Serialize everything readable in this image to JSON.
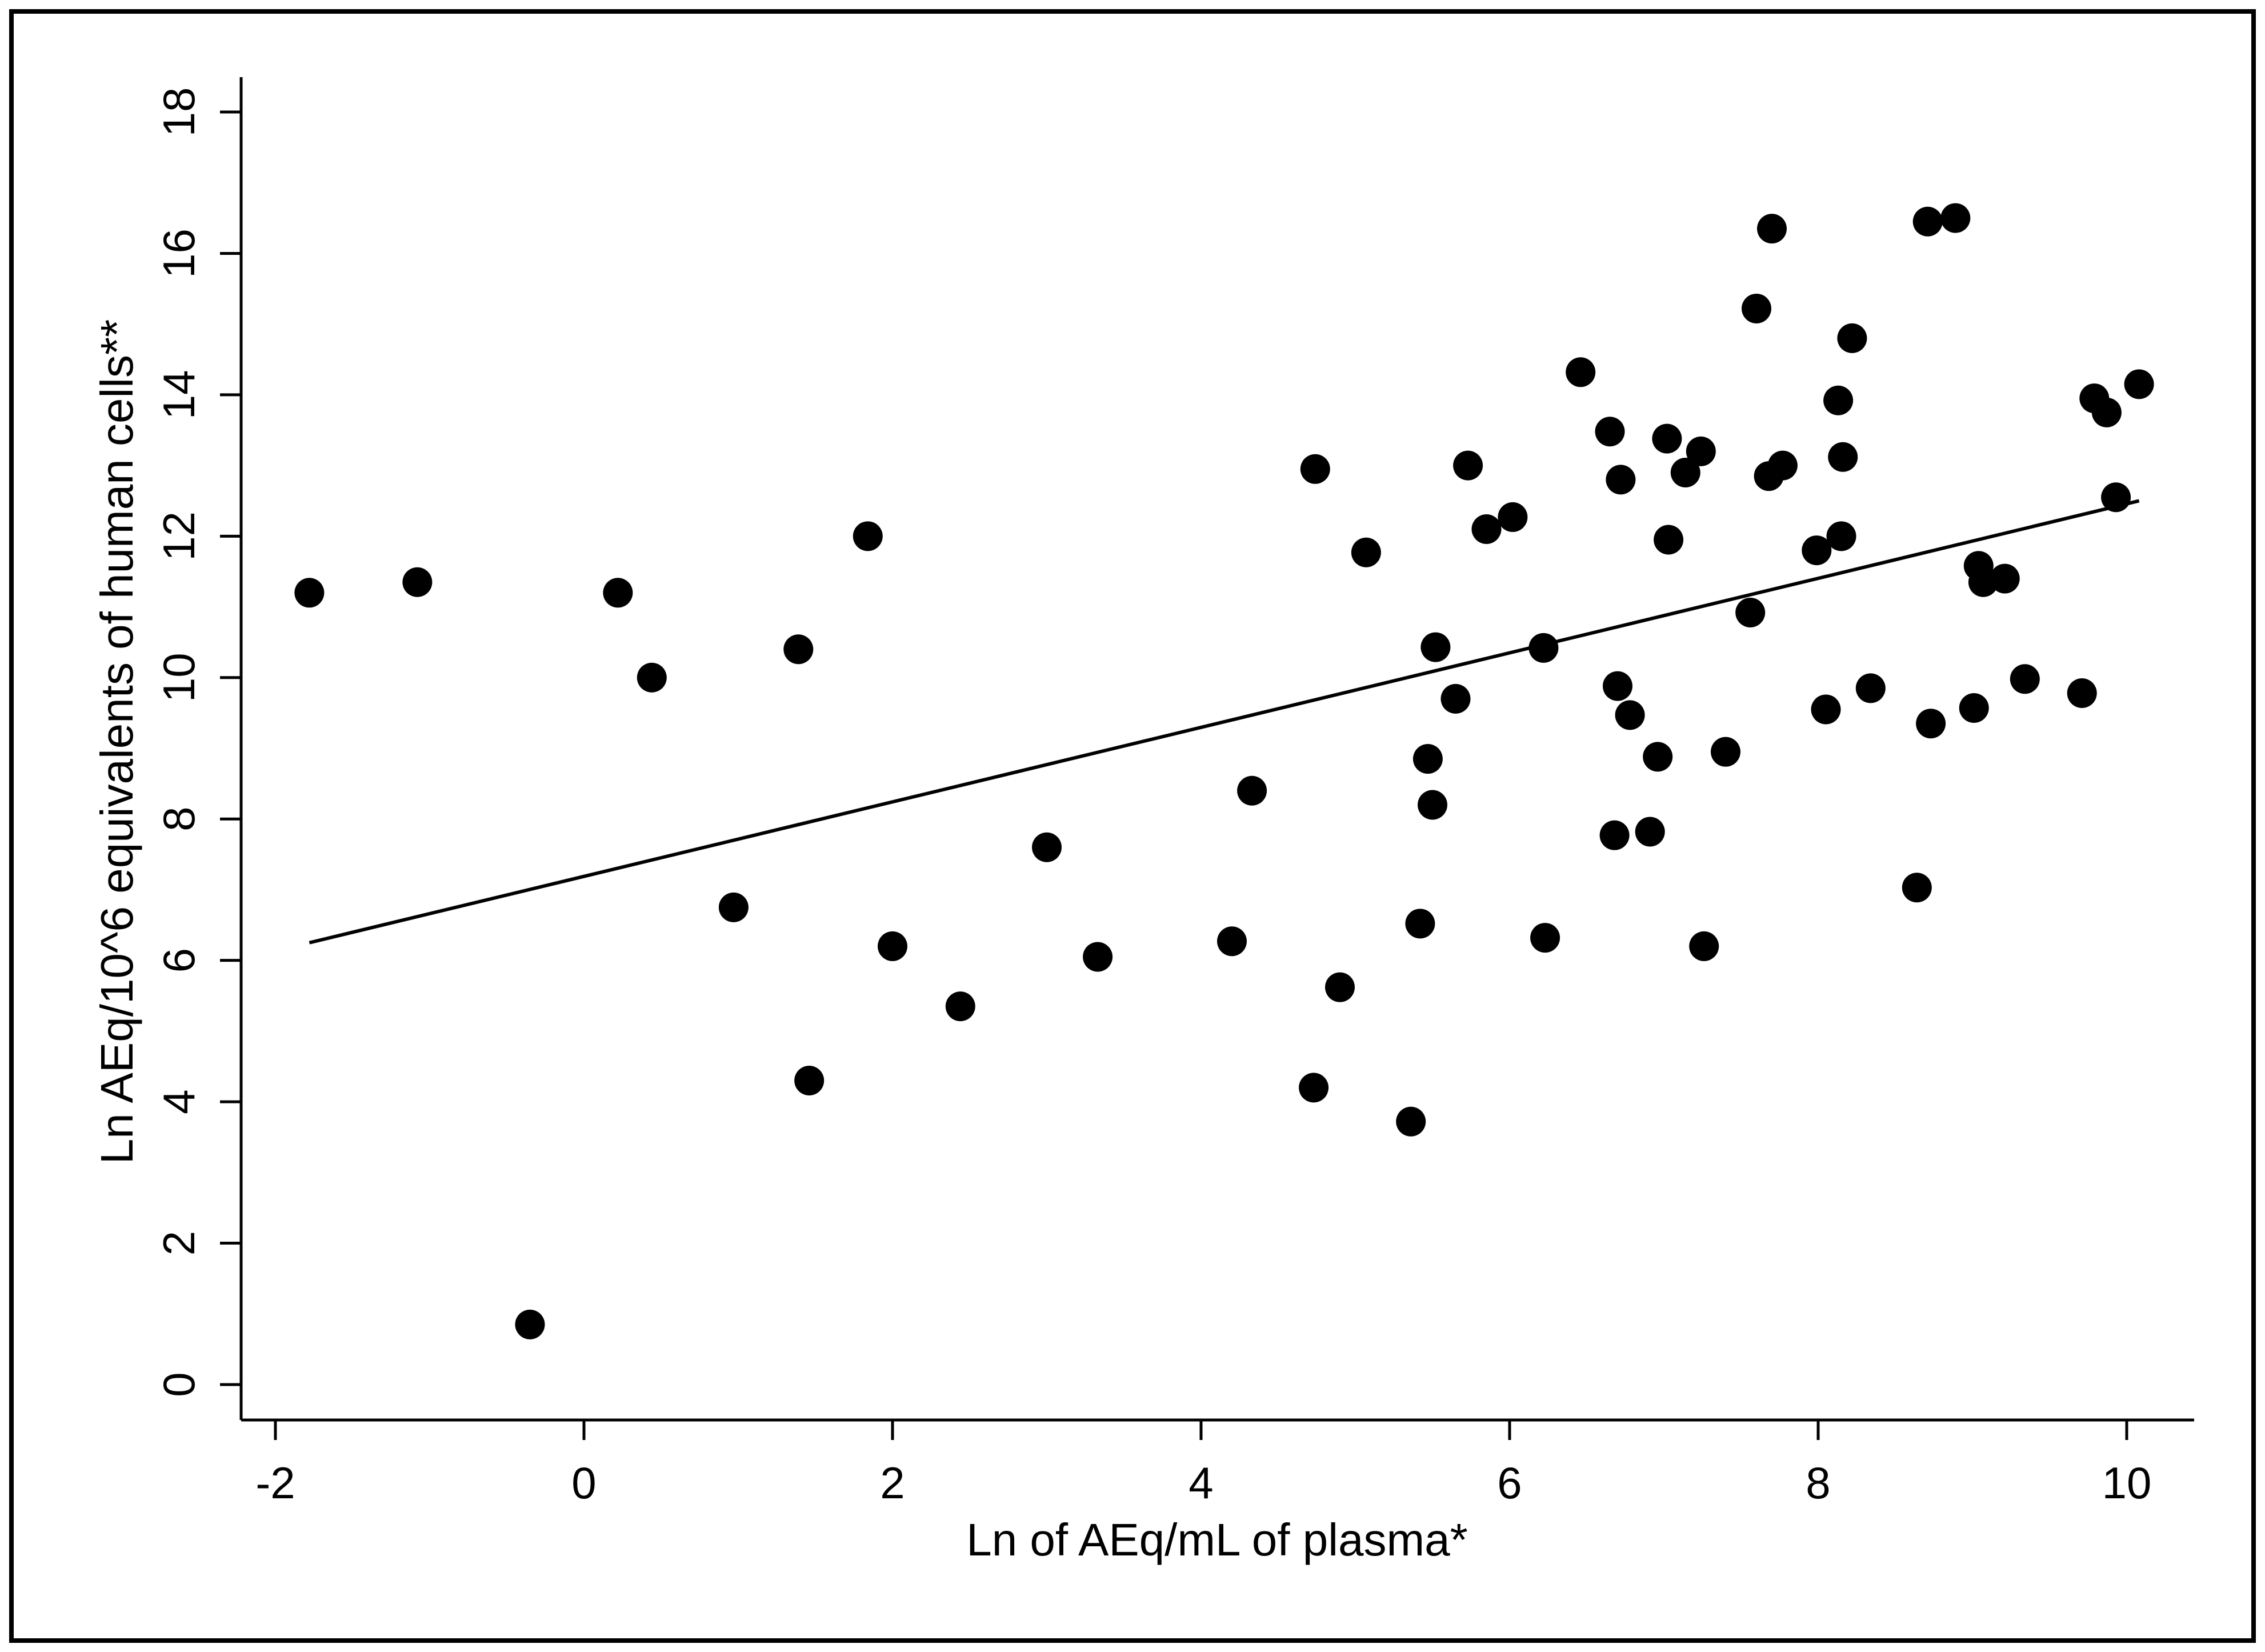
{
  "chart_data": {
    "type": "scatter",
    "xlabel": "Ln of AEq/mL of plasma*",
    "ylabel": "Ln AEq/10^6 equivalents of human cells**",
    "xlim": [
      -2.2,
      10.5
    ],
    "ylim": [
      -0.5,
      18.5
    ],
    "x_ticks": [
      -2,
      0,
      2,
      4,
      6,
      8,
      10
    ],
    "y_ticks": [
      0,
      2,
      4,
      6,
      8,
      10,
      12,
      14,
      16,
      18
    ],
    "x_tick_labels": [
      "-2",
      "0",
      "2",
      "4",
      "6",
      "8",
      "10"
    ],
    "y_tick_labels": [
      "0",
      "2",
      "4",
      "6",
      "8",
      "10",
      "12",
      "14",
      "16",
      "18"
    ],
    "grid": false,
    "legend": "none",
    "points": [
      [
        -1.78,
        11.2
      ],
      [
        -1.08,
        11.35
      ],
      [
        -0.35,
        0.85
      ],
      [
        0.22,
        11.2
      ],
      [
        0.44,
        10.0
      ],
      [
        0.97,
        6.75
      ],
      [
        1.39,
        10.4
      ],
      [
        1.46,
        4.3
      ],
      [
        1.84,
        12.0
      ],
      [
        2.0,
        6.2
      ],
      [
        2.44,
        5.35
      ],
      [
        3.0,
        7.6
      ],
      [
        3.33,
        6.05
      ],
      [
        4.2,
        6.27
      ],
      [
        4.33,
        8.4
      ],
      [
        4.73,
        4.2
      ],
      [
        4.74,
        12.95
      ],
      [
        4.9,
        5.62
      ],
      [
        5.07,
        11.77
      ],
      [
        5.36,
        3.72
      ],
      [
        5.42,
        6.52
      ],
      [
        5.47,
        8.85
      ],
      [
        5.5,
        8.2
      ],
      [
        5.52,
        10.43
      ],
      [
        5.65,
        9.7
      ],
      [
        5.73,
        13.0
      ],
      [
        5.85,
        12.1
      ],
      [
        6.02,
        12.27
      ],
      [
        6.22,
        10.42
      ],
      [
        6.23,
        6.32
      ],
      [
        6.46,
        14.32
      ],
      [
        6.65,
        13.48
      ],
      [
        6.68,
        7.77
      ],
      [
        6.7,
        9.88
      ],
      [
        6.72,
        12.8
      ],
      [
        6.78,
        9.47
      ],
      [
        6.91,
        7.82
      ],
      [
        6.96,
        8.88
      ],
      [
        7.02,
        13.38
      ],
      [
        7.03,
        11.95
      ],
      [
        7.14,
        12.9
      ],
      [
        7.24,
        13.2
      ],
      [
        7.26,
        6.2
      ],
      [
        7.4,
        8.95
      ],
      [
        7.56,
        10.92
      ],
      [
        7.6,
        15.22
      ],
      [
        7.68,
        12.85
      ],
      [
        7.7,
        16.35
      ],
      [
        7.77,
        13.0
      ],
      [
        7.99,
        11.8
      ],
      [
        8.05,
        9.55
      ],
      [
        8.13,
        13.92
      ],
      [
        8.15,
        12.0
      ],
      [
        8.16,
        13.12
      ],
      [
        8.22,
        14.8
      ],
      [
        8.34,
        9.85
      ],
      [
        8.64,
        7.03
      ],
      [
        8.71,
        16.45
      ],
      [
        8.73,
        9.35
      ],
      [
        8.89,
        16.5
      ],
      [
        9.01,
        9.57
      ],
      [
        9.04,
        11.58
      ],
      [
        9.07,
        11.35
      ],
      [
        9.21,
        11.4
      ],
      [
        9.34,
        9.98
      ],
      [
        9.71,
        9.78
      ],
      [
        9.79,
        13.95
      ],
      [
        9.87,
        13.75
      ],
      [
        9.93,
        12.55
      ],
      [
        10.08,
        14.15
      ]
    ],
    "fit_line": {
      "x": [
        -1.78,
        10.08
      ],
      "y": [
        6.25,
        12.5
      ]
    }
  }
}
